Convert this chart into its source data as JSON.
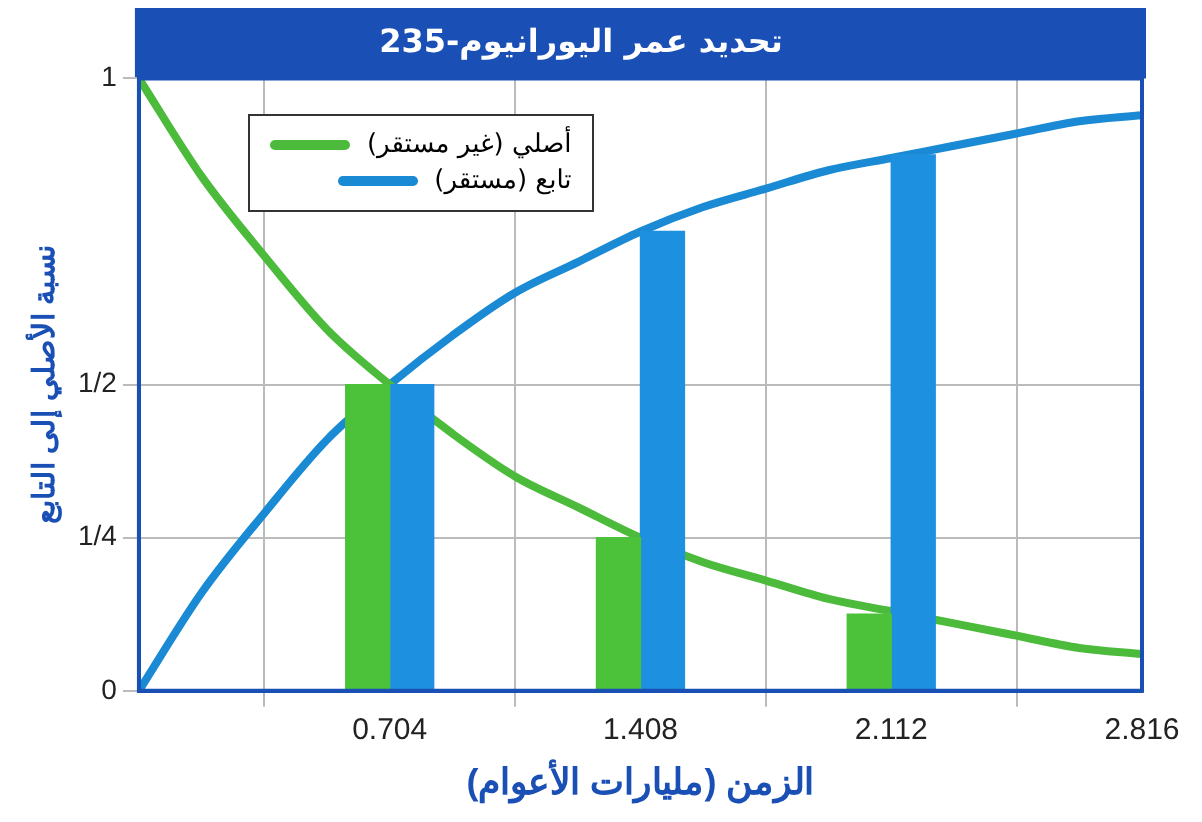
{
  "chart_data": {
    "type": "bar",
    "title": "تحديد عمر اليورانيوم-235",
    "xlabel": "الزمن (مليارات الأعوام)",
    "ylabel": "نسبة الأصلي إلى التابع",
    "xlim": [
      0,
      2.816
    ],
    "xticks": [
      {
        "value": 0,
        "label": null
      },
      0.704,
      1.408,
      2.112,
      2.816
    ],
    "ylim": [
      0,
      1
    ],
    "yticks": [
      0,
      {
        "value": 0.25,
        "label": "1/4"
      },
      {
        "value": 0.5,
        "label": "1/2"
      },
      1
    ],
    "grid": true,
    "legend": "top left",
    "series": [
      {
        "color": "#4cc23a",
        "x": [
          0.704,
          1.408,
          2.112
        ],
        "values": [
          0.5,
          0.25,
          0.125
        ]
      },
      {
        "color": "#1e90e0",
        "x": [
          0.704,
          1.408,
          2.112
        ],
        "values": [
          0.5,
          0.75,
          0.875
        ]
      },
      {
        "type": "line",
        "name": "أصلي (غير مستقر)",
        "color": "#4cbb3c",
        "x": [
          0,
          0.176,
          0.352,
          0.528,
          0.704,
          0.88,
          1.056,
          1.232,
          1.408,
          1.584,
          1.76,
          1.936,
          2.112,
          2.288,
          2.464,
          2.64,
          2.816
        ],
        "values": [
          1,
          0.84,
          0.71,
          0.59,
          0.5,
          0.42,
          0.35,
          0.3,
          0.25,
          0.21,
          0.18,
          0.15,
          0.13,
          0.11,
          0.09,
          0.07,
          0.06
        ]
      },
      {
        "type": "line",
        "name": "تابع (مستقر)",
        "color": "#1a8ad4",
        "x": [
          0,
          0.176,
          0.352,
          0.528,
          0.704,
          0.88,
          1.056,
          1.232,
          1.408,
          1.584,
          1.76,
          1.936,
          2.112,
          2.288,
          2.464,
          2.64,
          2.816
        ],
        "values": [
          0,
          0.16,
          0.29,
          0.41,
          0.5,
          0.58,
          0.65,
          0.7,
          0.75,
          0.79,
          0.82,
          0.85,
          0.87,
          0.89,
          0.91,
          0.93,
          0.94
        ]
      }
    ]
  }
}
